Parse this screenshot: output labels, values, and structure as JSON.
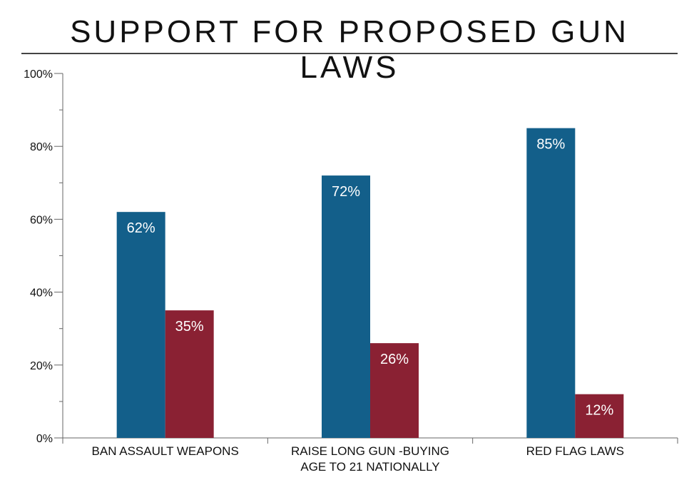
{
  "title": "SUPPORT FOR PROPOSED GUN LAWS",
  "chart_data": {
    "type": "bar",
    "title": "SUPPORT FOR PROPOSED GUN LAWS",
    "xlabel": "",
    "ylabel": "",
    "ylim": [
      0,
      100
    ],
    "y_ticks": [
      "0%",
      "20%",
      "40%",
      "60%",
      "80%",
      "100%"
    ],
    "grid": false,
    "legend": "none",
    "categories": [
      [
        "BAN ASSAULT WEAPONS"
      ],
      [
        "RAISE LONG GUN -BUYING",
        "AGE TO 21 NATIONALLY"
      ],
      [
        "RED FLAG LAWS"
      ]
    ],
    "series": [
      {
        "color": "#135f8a",
        "values": [
          62,
          72,
          85
        ],
        "labels": [
          "62%",
          "72%",
          "85%"
        ]
      },
      {
        "color": "#8a2133",
        "values": [
          35,
          26,
          12
        ],
        "labels": [
          "35%",
          "26%",
          "12%"
        ]
      }
    ]
  }
}
